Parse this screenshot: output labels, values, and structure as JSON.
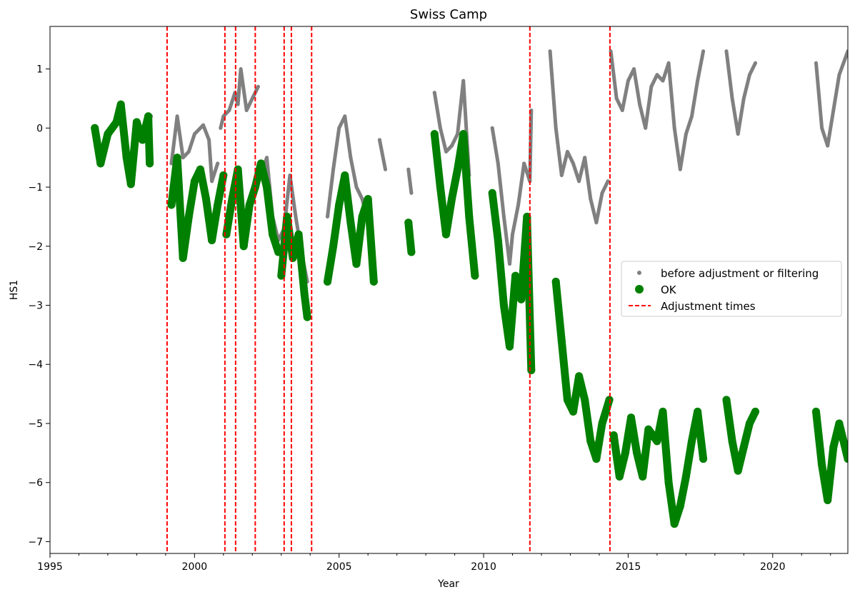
{
  "chart_data": {
    "type": "scatter",
    "title": "Swiss Camp",
    "xlabel": "Year",
    "ylabel": "HS1",
    "xlim": [
      1995,
      2022.6
    ],
    "ylim": [
      -7.2,
      1.72
    ],
    "x_ticks": [
      1995,
      2000,
      2005,
      2010,
      2015,
      2020
    ],
    "y_ticks": [
      -7,
      -6,
      -5,
      -4,
      -3,
      -2,
      -1,
      0,
      1
    ],
    "legend_position": "center-right",
    "legend": [
      "before adjustment or filtering",
      "OK",
      "Adjustment times"
    ],
    "colors": {
      "before": "#808080",
      "ok": "#008000",
      "adjustment": "#ff0000"
    },
    "series": [
      {
        "name": "before adjustment or filtering",
        "marker": "small-dot",
        "segments": [
          [
            [
              1996.55,
              0.0
            ],
            [
              1996.75,
              -0.6
            ],
            [
              1997.0,
              -0.1
            ],
            [
              1997.3,
              0.1
            ],
            [
              1997.45,
              0.4
            ],
            [
              1997.65,
              -0.5
            ],
            [
              1997.8,
              -0.95
            ],
            [
              1998.0,
              0.1
            ],
            [
              1998.2,
              -0.2
            ],
            [
              1998.5,
              0.2
            ]
          ],
          [
            [
              1999.2,
              -0.6
            ],
            [
              1999.4,
              0.2
            ],
            [
              1999.6,
              -0.5
            ],
            [
              1999.8,
              -0.4
            ],
            [
              2000.0,
              -0.1
            ],
            [
              2000.3,
              0.05
            ],
            [
              2000.5,
              -0.2
            ],
            [
              2000.6,
              -0.9
            ],
            [
              2000.8,
              -0.6
            ]
          ],
          [
            [
              2000.9,
              0.0
            ],
            [
              2001.0,
              0.2
            ],
            [
              2001.2,
              0.3
            ],
            [
              2001.4,
              0.6
            ],
            [
              2001.5,
              0.4
            ],
            [
              2001.6,
              1.0
            ],
            [
              2001.8,
              0.3
            ],
            [
              2002.0,
              0.5
            ],
            [
              2002.2,
              0.7
            ]
          ],
          [
            [
              2002.3,
              -0.8
            ],
            [
              2002.5,
              -0.5
            ],
            [
              2002.7,
              -1.5
            ],
            [
              2002.9,
              -1.9
            ],
            [
              2003.1,
              -1.7
            ],
            [
              2003.3,
              -0.8
            ],
            [
              2003.5,
              -1.5
            ],
            [
              2003.7,
              -2.1
            ],
            [
              2003.9,
              -2.6
            ]
          ],
          [
            [
              2004.6,
              -1.5
            ],
            [
              2004.8,
              -0.7
            ],
            [
              2005.0,
              0.0
            ],
            [
              2005.2,
              0.2
            ],
            [
              2005.4,
              -0.5
            ],
            [
              2005.6,
              -1.0
            ],
            [
              2005.8,
              -1.2
            ],
            [
              2006.0,
              -1.6
            ]
          ],
          [
            [
              2006.4,
              -0.2
            ],
            [
              2006.6,
              -0.7
            ]
          ],
          [
            [
              2007.4,
              -0.7
            ],
            [
              2007.5,
              -1.1
            ]
          ],
          [
            [
              2008.3,
              0.6
            ],
            [
              2008.5,
              0.0
            ],
            [
              2008.7,
              -0.4
            ],
            [
              2008.9,
              -0.3
            ],
            [
              2009.1,
              -0.1
            ],
            [
              2009.3,
              0.8
            ],
            [
              2009.5,
              -0.8
            ]
          ],
          [
            [
              2010.3,
              0.0
            ],
            [
              2010.5,
              -0.6
            ],
            [
              2010.7,
              -1.5
            ],
            [
              2010.9,
              -2.3
            ],
            [
              2011.0,
              -1.8
            ],
            [
              2011.2,
              -1.3
            ],
            [
              2011.4,
              -0.6
            ],
            [
              2011.6,
              -0.9
            ],
            [
              2011.65,
              0.3
            ]
          ],
          [
            [
              2012.3,
              1.3
            ],
            [
              2012.5,
              0.0
            ],
            [
              2012.7,
              -0.8
            ],
            [
              2012.9,
              -0.4
            ],
            [
              2013.1,
              -0.6
            ],
            [
              2013.3,
              -0.9
            ],
            [
              2013.5,
              -0.5
            ],
            [
              2013.7,
              -1.2
            ],
            [
              2013.9,
              -1.6
            ],
            [
              2014.1,
              -1.1
            ],
            [
              2014.3,
              -0.9
            ]
          ],
          [
            [
              2014.4,
              1.3
            ],
            [
              2014.6,
              0.5
            ],
            [
              2014.8,
              0.3
            ],
            [
              2015.0,
              0.8
            ],
            [
              2015.2,
              1.0
            ],
            [
              2015.4,
              0.4
            ],
            [
              2015.6,
              0.0
            ],
            [
              2015.8,
              0.7
            ],
            [
              2016.0,
              0.9
            ],
            [
              2016.2,
              0.8
            ],
            [
              2016.4,
              1.1
            ],
            [
              2016.6,
              0.0
            ],
            [
              2016.8,
              -0.7
            ],
            [
              2017.0,
              -0.1
            ],
            [
              2017.2,
              0.2
            ],
            [
              2017.4,
              0.8
            ],
            [
              2017.6,
              1.3
            ]
          ],
          [
            [
              2018.4,
              1.3
            ],
            [
              2018.6,
              0.5
            ],
            [
              2018.8,
              -0.1
            ],
            [
              2019.0,
              0.5
            ],
            [
              2019.2,
              0.9
            ],
            [
              2019.4,
              1.1
            ]
          ],
          [
            [
              2021.5,
              1.1
            ],
            [
              2021.7,
              0.0
            ],
            [
              2021.9,
              -0.3
            ],
            [
              2022.1,
              0.3
            ],
            [
              2022.3,
              0.9
            ],
            [
              2022.6,
              1.3
            ]
          ]
        ]
      },
      {
        "name": "OK",
        "marker": "large-dot",
        "segments": [
          [
            [
              1996.55,
              0.0
            ],
            [
              1996.75,
              -0.6
            ],
            [
              1997.0,
              -0.1
            ],
            [
              1997.3,
              0.1
            ],
            [
              1997.45,
              0.4
            ],
            [
              1997.65,
              -0.5
            ],
            [
              1997.8,
              -0.95
            ],
            [
              1998.0,
              0.1
            ],
            [
              1998.2,
              -0.2
            ],
            [
              1998.4,
              0.2
            ],
            [
              1998.45,
              -0.6
            ]
          ],
          [
            [
              1999.2,
              -1.3
            ],
            [
              1999.4,
              -0.5
            ],
            [
              1999.6,
              -2.2
            ],
            [
              1999.8,
              -1.5
            ],
            [
              2000.0,
              -0.9
            ],
            [
              2000.2,
              -0.7
            ],
            [
              2000.4,
              -1.2
            ],
            [
              2000.6,
              -1.9
            ],
            [
              2000.8,
              -1.3
            ],
            [
              2001.0,
              -0.8
            ]
          ],
          [
            [
              2001.1,
              -1.8
            ],
            [
              2001.3,
              -1.2
            ],
            [
              2001.5,
              -0.7
            ],
            [
              2001.7,
              -2.0
            ],
            [
              2001.9,
              -1.3
            ],
            [
              2002.1,
              -1.0
            ],
            [
              2002.3,
              -0.6
            ],
            [
              2002.5,
              -1.0
            ],
            [
              2002.7,
              -1.8
            ],
            [
              2002.9,
              -2.1
            ]
          ],
          [
            [
              2003.0,
              -2.5
            ],
            [
              2003.2,
              -1.5
            ],
            [
              2003.4,
              -2.2
            ],
            [
              2003.6,
              -1.8
            ],
            [
              2003.8,
              -2.8
            ],
            [
              2003.9,
              -3.2
            ]
          ],
          [
            [
              2004.6,
              -2.6
            ],
            [
              2004.8,
              -2.0
            ],
            [
              2005.0,
              -1.3
            ],
            [
              2005.2,
              -0.8
            ],
            [
              2005.4,
              -1.6
            ],
            [
              2005.6,
              -2.3
            ],
            [
              2005.8,
              -1.5
            ],
            [
              2006.0,
              -1.2
            ],
            [
              2006.2,
              -2.6
            ]
          ],
          [
            [
              2007.4,
              -1.6
            ],
            [
              2007.5,
              -2.1
            ]
          ],
          [
            [
              2008.3,
              -0.1
            ],
            [
              2008.5,
              -1.0
            ],
            [
              2008.7,
              -1.8
            ],
            [
              2008.9,
              -1.2
            ],
            [
              2009.1,
              -0.7
            ],
            [
              2009.3,
              -0.1
            ],
            [
              2009.5,
              -1.5
            ],
            [
              2009.7,
              -2.5
            ]
          ],
          [
            [
              2010.3,
              -1.1
            ],
            [
              2010.5,
              -1.9
            ],
            [
              2010.7,
              -3.0
            ],
            [
              2010.9,
              -3.7
            ],
            [
              2011.1,
              -2.5
            ],
            [
              2011.3,
              -2.9
            ],
            [
              2011.5,
              -1.5
            ],
            [
              2011.65,
              -4.1
            ]
          ],
          [
            [
              2012.5,
              -2.6
            ],
            [
              2012.7,
              -3.6
            ],
            [
              2012.9,
              -4.6
            ],
            [
              2013.1,
              -4.8
            ],
            [
              2013.3,
              -4.2
            ],
            [
              2013.5,
              -4.6
            ],
            [
              2013.7,
              -5.3
            ],
            [
              2013.9,
              -5.6
            ],
            [
              2014.1,
              -5.0
            ],
            [
              2014.35,
              -4.6
            ]
          ],
          [
            [
              2014.5,
              -5.2
            ],
            [
              2014.7,
              -5.9
            ],
            [
              2014.9,
              -5.5
            ],
            [
              2015.1,
              -4.9
            ],
            [
              2015.3,
              -5.5
            ],
            [
              2015.5,
              -5.9
            ],
            [
              2015.7,
              -5.1
            ],
            [
              2016.0,
              -5.3
            ],
            [
              2016.2,
              -4.8
            ],
            [
              2016.4,
              -6.0
            ],
            [
              2016.6,
              -6.7
            ],
            [
              2016.8,
              -6.4
            ],
            [
              2017.0,
              -5.9
            ],
            [
              2017.2,
              -5.3
            ],
            [
              2017.4,
              -4.8
            ],
            [
              2017.6,
              -5.6
            ]
          ],
          [
            [
              2018.4,
              -4.6
            ],
            [
              2018.6,
              -5.3
            ],
            [
              2018.8,
              -5.8
            ],
            [
              2019.0,
              -5.4
            ],
            [
              2019.2,
              -5.0
            ],
            [
              2019.4,
              -4.8
            ]
          ],
          [
            [
              2021.5,
              -4.8
            ],
            [
              2021.7,
              -5.7
            ],
            [
              2021.9,
              -6.3
            ],
            [
              2022.1,
              -5.4
            ],
            [
              2022.3,
              -5.0
            ],
            [
              2022.6,
              -5.6
            ]
          ]
        ]
      }
    ],
    "adjustment_times": [
      1999.05,
      2001.05,
      2001.42,
      2002.1,
      2003.1,
      2003.35,
      2004.05,
      2011.6,
      2014.37
    ]
  }
}
